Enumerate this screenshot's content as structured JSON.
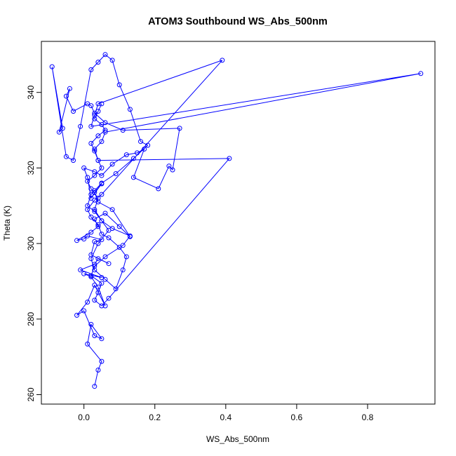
{
  "chart_data": {
    "type": "line",
    "title": "ATOM3 Southbound WS_Abs_500nm",
    "xlabel": "WS_Abs_500nm",
    "ylabel": "Theta (K)",
    "xlim": [
      -0.12,
      0.99
    ],
    "ylim": [
      257.5,
      353.5
    ],
    "xticks": [
      0.0,
      0.2,
      0.4,
      0.6,
      0.8
    ],
    "xtick_labels": [
      "0.0",
      "0.2",
      "0.4",
      "0.6",
      "0.8"
    ],
    "yticks": [
      260,
      280,
      300,
      320,
      340
    ],
    "yticks_labels": [
      "260",
      "280",
      "300",
      "320",
      "340"
    ],
    "grid": false,
    "legend": "none",
    "marker": "open-circle",
    "series": [
      {
        "color": "#0000ff",
        "x": [
          0.03,
          0.04,
          0.05,
          0.01,
          0.02,
          0.05,
          0.03,
          0.0,
          -0.02,
          0.01,
          0.03,
          0.06,
          0.04,
          0.02,
          0.0,
          0.05,
          -0.01,
          0.03,
          0.04,
          0.07,
          0.02,
          0.03,
          0.05,
          0.01,
          0.0,
          -0.02,
          0.02,
          0.04,
          0.03,
          0.06,
          0.1,
          0.13,
          0.08,
          0.04,
          0.03,
          0.05,
          0.02,
          0.01,
          0.0,
          0.03,
          0.05,
          0.08,
          0.12,
          0.15,
          0.17,
          0.14,
          0.21,
          0.24,
          0.25,
          0.27,
          0.11,
          0.06,
          0.03,
          0.02,
          0.01,
          -0.03,
          -0.05,
          -0.04,
          -0.07,
          -0.06,
          -0.09,
          -0.05,
          -0.03,
          -0.01,
          0.02,
          0.04,
          0.06,
          0.08,
          0.1,
          0.13,
          0.16,
          0.18,
          0.14,
          0.09,
          0.05,
          0.03,
          0.02,
          0.01,
          0.03,
          0.05,
          0.07,
          0.04,
          0.02,
          0.03,
          0.06,
          0.09,
          0.11,
          0.12,
          0.1,
          0.07,
          0.05,
          0.04,
          0.02,
          0.01,
          0.03,
          0.05,
          0.39,
          0.04,
          0.03,
          0.02,
          0.95,
          0.06,
          0.05,
          0.03,
          0.04,
          0.41,
          0.07,
          0.05,
          0.03,
          0.04,
          0.05,
          0.02,
          0.03,
          0.06,
          0.11,
          0.13,
          0.08,
          0.05,
          0.03,
          0.04,
          0.02,
          0.01,
          0.03,
          0.05,
          0.04,
          0.03,
          0.02,
          0.04,
          0.06,
          0.05,
          0.03,
          0.04,
          0.05
        ],
        "y": [
          262.2,
          266.5,
          268.8,
          273.4,
          278.6,
          274.8,
          275.6,
          282.2,
          281.0,
          284.5,
          289.0,
          283.5,
          288.5,
          291.2,
          292.0,
          291.0,
          293.0,
          294.5,
          296.0,
          294.7,
          297.0,
          300.5,
          301.0,
          302.0,
          301.2,
          300.8,
          303.0,
          304.5,
          306.5,
          308.0,
          304.5,
          301.8,
          309.0,
          311.0,
          313.5,
          315.8,
          312.0,
          317.5,
          320.0,
          319.0,
          318.0,
          321.0,
          323.5,
          324.0,
          325.0,
          317.5,
          314.5,
          320.5,
          319.5,
          330.5,
          330.0,
          332.0,
          334.5,
          336.5,
          337.0,
          335.0,
          339.0,
          341.0,
          329.5,
          330.5,
          346.8,
          323.0,
          322.0,
          331.0,
          346.0,
          348.0,
          350.0,
          348.5,
          342.0,
          335.5,
          327.0,
          326.0,
          322.5,
          318.5,
          316.0,
          314.0,
          313.0,
          310.0,
          308.5,
          306.0,
          303.5,
          300.0,
          296.0,
          293.0,
          290.5,
          288.0,
          293.0,
          296.5,
          299.0,
          301.5,
          302.5,
          305.0,
          307.0,
          309.0,
          311.5,
          313.0,
          348.5,
          337.0,
          334.0,
          331.0,
          345.0,
          329.5,
          327.0,
          325.0,
          322.0,
          322.5,
          285.5,
          283.5,
          285.0,
          287.0,
          289.5,
          291.5,
          294.0,
          296.5,
          299.5,
          302.0,
          304.0,
          306.0,
          309.0,
          312.0,
          314.5,
          316.5,
          318.0,
          320.0,
          322.0,
          324.5,
          326.5,
          328.5,
          330.0,
          331.5,
          333.0,
          335.0,
          337.0
        ]
      }
    ]
  }
}
